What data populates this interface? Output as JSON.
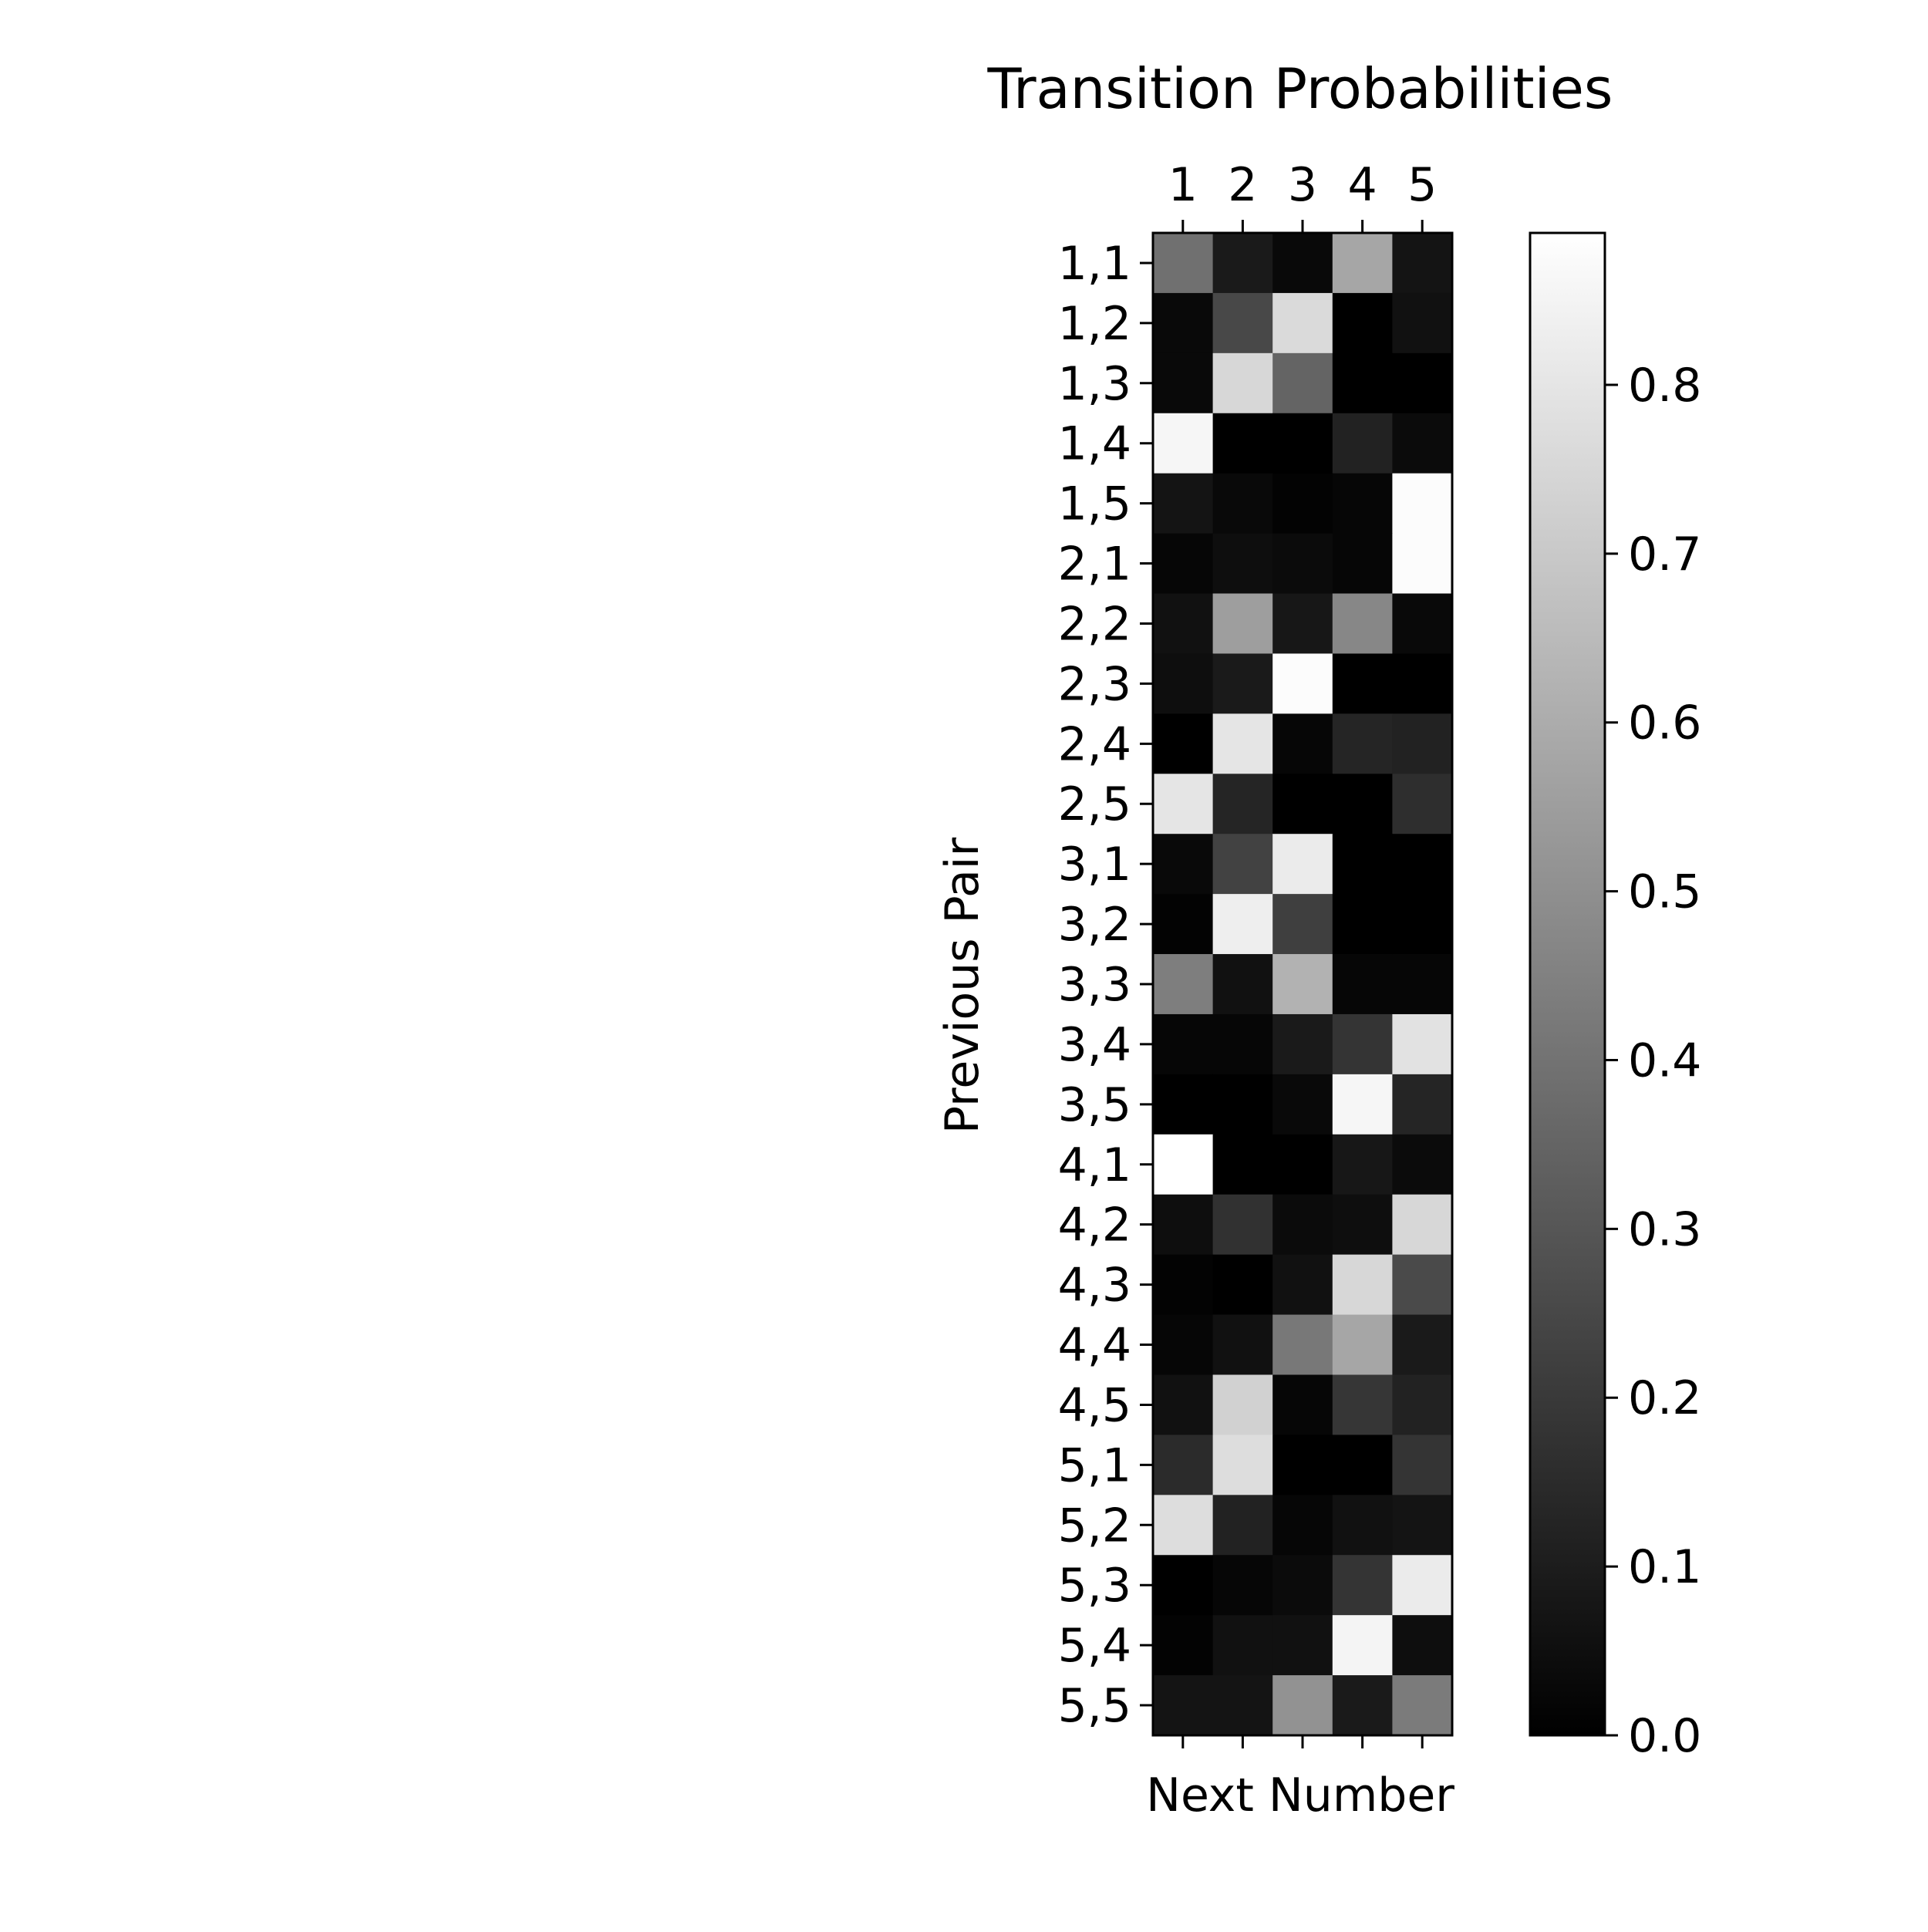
{
  "chart_data": {
    "type": "heatmap",
    "title": "Transition Probabilities",
    "xlabel": "Next Number",
    "ylabel": "Previous Pair",
    "x_tick_position": "top",
    "x_categories": [
      "1",
      "2",
      "3",
      "4",
      "5"
    ],
    "y_categories": [
      "1,1",
      "1,2",
      "1,3",
      "1,4",
      "1,5",
      "2,1",
      "2,2",
      "2,3",
      "2,4",
      "2,5",
      "3,1",
      "3,2",
      "3,3",
      "3,4",
      "3,5",
      "4,1",
      "4,2",
      "4,3",
      "4,4",
      "4,5",
      "5,1",
      "5,2",
      "5,3",
      "5,4",
      "5,5"
    ],
    "colormap": "gray",
    "vmin": 0.0,
    "vmax": 0.89,
    "colorbar_ticks": [
      0.0,
      0.1,
      0.2,
      0.3,
      0.4,
      0.5,
      0.6,
      0.7,
      0.8
    ],
    "colorbar_tick_labels": [
      "0.0",
      "0.1",
      "0.2",
      "0.3",
      "0.4",
      "0.5",
      "0.6",
      "0.7",
      "0.8"
    ],
    "grid": false,
    "values": [
      [
        0.39,
        0.09,
        0.03,
        0.58,
        0.07
      ],
      [
        0.03,
        0.25,
        0.76,
        0.0,
        0.06
      ],
      [
        0.03,
        0.75,
        0.35,
        0.0,
        0.0
      ],
      [
        0.86,
        0.0,
        0.0,
        0.12,
        0.04
      ],
      [
        0.07,
        0.03,
        0.01,
        0.02,
        0.88
      ],
      [
        0.02,
        0.05,
        0.04,
        0.02,
        0.88
      ],
      [
        0.06,
        0.55,
        0.08,
        0.47,
        0.03
      ],
      [
        0.05,
        0.09,
        0.88,
        0.0,
        0.0
      ],
      [
        0.0,
        0.8,
        0.02,
        0.13,
        0.12
      ],
      [
        0.8,
        0.13,
        0.0,
        0.0,
        0.16
      ],
      [
        0.03,
        0.23,
        0.82,
        0.0,
        0.0
      ],
      [
        0.01,
        0.83,
        0.22,
        0.0,
        0.0
      ],
      [
        0.44,
        0.06,
        0.62,
        0.02,
        0.02
      ],
      [
        0.02,
        0.02,
        0.09,
        0.18,
        0.79
      ],
      [
        0.0,
        0.0,
        0.03,
        0.86,
        0.13
      ],
      [
        0.89,
        0.0,
        0.0,
        0.08,
        0.04
      ],
      [
        0.05,
        0.17,
        0.04,
        0.05,
        0.75
      ],
      [
        0.01,
        0.0,
        0.06,
        0.75,
        0.26
      ],
      [
        0.02,
        0.06,
        0.42,
        0.58,
        0.09
      ],
      [
        0.06,
        0.73,
        0.02,
        0.19,
        0.12
      ],
      [
        0.15,
        0.77,
        0.0,
        0.0,
        0.18
      ],
      [
        0.77,
        0.12,
        0.02,
        0.06,
        0.07
      ],
      [
        0.0,
        0.02,
        0.04,
        0.18,
        0.82
      ],
      [
        0.01,
        0.06,
        0.06,
        0.85,
        0.05
      ],
      [
        0.07,
        0.07,
        0.51,
        0.09,
        0.43
      ]
    ]
  }
}
